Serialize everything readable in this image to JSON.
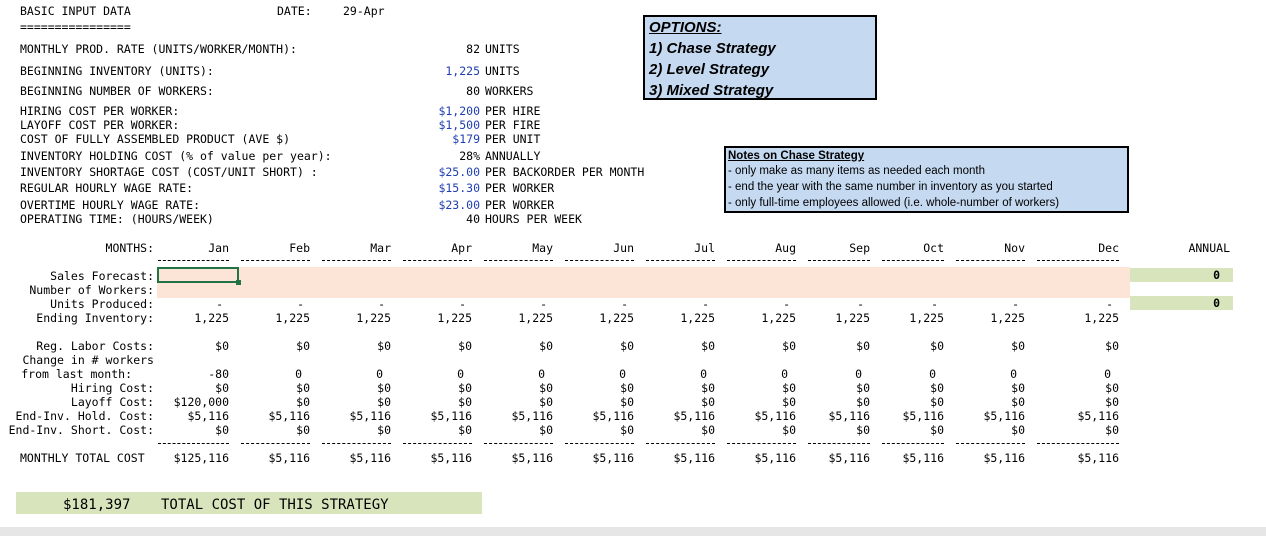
{
  "header": {
    "title": "BASIC INPUT DATA",
    "underline": "================",
    "date_label": "DATE:",
    "date_value": "29-Apr"
  },
  "inputs": [
    {
      "label": "MONTHLY PROD. RATE (UNITS/WORKER/MONTH):",
      "value": "82",
      "unit": "UNITS",
      "blue": false
    },
    {
      "label": "BEGINNING INVENTORY (UNITS):",
      "value": "1,225",
      "unit": "UNITS",
      "blue": true
    },
    {
      "label": "BEGINNING NUMBER OF WORKERS:",
      "value": "80",
      "unit": "WORKERS",
      "blue": false
    },
    {
      "label": "HIRING COST PER WORKER:",
      "value": "$1,200",
      "unit": "PER HIRE",
      "blue": true
    },
    {
      "label": "LAYOFF COST PER WORKER:",
      "value": "$1,500",
      "unit": "PER FIRE",
      "blue": true
    },
    {
      "label": "COST OF FULLY ASSEMBLED PRODUCT (AVE $)",
      "value": "$179",
      "unit": "PER UNIT",
      "blue": true
    },
    {
      "label": "INVENTORY HOLDING COST (% of value per year):",
      "value": "28%",
      "unit": "ANNUALLY",
      "blue": false
    },
    {
      "label": "INVENTORY SHORTAGE COST (COST/UNIT SHORT) :",
      "value": "$25.00",
      "unit": "PER BACKORDER PER MONTH",
      "blue": true
    },
    {
      "label": "REGULAR HOURLY WAGE RATE:",
      "value": "$15.30",
      "unit": "PER WORKER",
      "blue": true
    },
    {
      "label": "OVERTIME HOURLY WAGE RATE:",
      "value": "$23.00",
      "unit": "PER WORKER",
      "blue": true
    },
    {
      "label": "OPERATING TIME: (HOURS/WEEK)",
      "value": "40",
      "unit": "HOURS PER WEEK",
      "blue": false
    }
  ],
  "options": {
    "title": "OPTIONS:",
    "items": [
      "1) Chase Strategy",
      "2) Level Strategy",
      "3) Mixed Strategy"
    ]
  },
  "notes": {
    "title": "Notes on Chase Strategy",
    "lines": [
      "- only make as many items as needed each month",
      "- end the year with the same number in inventory as you started",
      "- only full-time employees allowed (i.e. whole-number of workers)"
    ]
  },
  "table": {
    "months_label": "MONTHS:",
    "months": [
      "Jan",
      "Feb",
      "Mar",
      "Apr",
      "May",
      "Jun",
      "Jul",
      "Aug",
      "Sep",
      "Oct",
      "Nov",
      "Dec"
    ],
    "annual_label": "ANNUAL",
    "rows": [
      {
        "label": "Sales Forecast:",
        "values": [
          "",
          "",
          "",
          "",
          "",
          "",
          "",
          "",
          "",
          "",
          "",
          ""
        ],
        "annual": "0"
      },
      {
        "label": "Number of Workers:",
        "values": [
          "",
          "",
          "",
          "",
          "",
          "",
          "",
          "",
          "",
          "",
          "",
          ""
        ],
        "annual": ""
      },
      {
        "label": "Units Produced:",
        "values": [
          "-",
          "-",
          "-",
          "-",
          "-",
          "-",
          "-",
          "-",
          "-",
          "-",
          "-",
          "-"
        ],
        "annual": "0"
      },
      {
        "label": "Ending Inventory:",
        "values": [
          "1,225",
          "1,225",
          "1,225",
          "1,225",
          "1,225",
          "1,225",
          "1,225",
          "1,225",
          "1,225",
          "1,225",
          "1,225",
          "1,225"
        ],
        "annual": ""
      },
      {
        "label": "Reg. Labor Costs:",
        "values": [
          "$0",
          "$0",
          "$0",
          "$0",
          "$0",
          "$0",
          "$0",
          "$0",
          "$0",
          "$0",
          "$0",
          "$0"
        ],
        "annual": ""
      },
      {
        "label": "Change in # workers",
        "values": [
          "",
          "",
          "",
          "",
          "",
          "",
          "",
          "",
          "",
          "",
          "",
          ""
        ],
        "annual": ""
      },
      {
        "label": "from last month:",
        "values": [
          "-80",
          "0",
          "0",
          "0",
          "0",
          "0",
          "0",
          "0",
          "0",
          "0",
          "0",
          "0"
        ],
        "annual": ""
      },
      {
        "label": "Hiring Cost:",
        "values": [
          "$0",
          "$0",
          "$0",
          "$0",
          "$0",
          "$0",
          "$0",
          "$0",
          "$0",
          "$0",
          "$0",
          "$0"
        ],
        "annual": ""
      },
      {
        "label": "Layoff Cost:",
        "values": [
          "$120,000",
          "$0",
          "$0",
          "$0",
          "$0",
          "$0",
          "$0",
          "$0",
          "$0",
          "$0",
          "$0",
          "$0"
        ],
        "annual": ""
      },
      {
        "label": "End-Inv. Hold. Cost:",
        "values": [
          "$5,116",
          "$5,116",
          "$5,116",
          "$5,116",
          "$5,116",
          "$5,116",
          "$5,116",
          "$5,116",
          "$5,116",
          "$5,116",
          "$5,116",
          "$5,116"
        ],
        "annual": ""
      },
      {
        "label": "End-Inv. Short. Cost:",
        "values": [
          "$0",
          "$0",
          "$0",
          "$0",
          "$0",
          "$0",
          "$0",
          "$0",
          "$0",
          "$0",
          "$0",
          "$0"
        ],
        "annual": ""
      },
      {
        "label": "MONTHLY TOTAL COST",
        "values": [
          "$125,116",
          "$5,116",
          "$5,116",
          "$5,116",
          "$5,116",
          "$5,116",
          "$5,116",
          "$5,116",
          "$5,116",
          "$5,116",
          "$5,116",
          "$5,116"
        ],
        "annual": ""
      }
    ]
  },
  "total": {
    "value": "$181,397",
    "label": "TOTAL COST OF THIS STRATEGY"
  },
  "colors": {
    "input_band": "#fce4d6",
    "annual_green": "#d8e4bc",
    "note_blue": "#c5d9f1",
    "value_blue": "#1f3fb0"
  }
}
